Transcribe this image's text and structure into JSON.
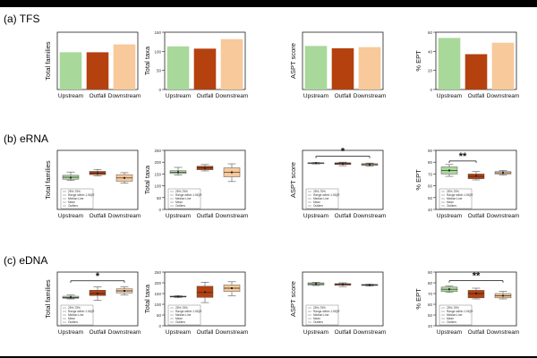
{
  "colors": {
    "upstream": "#a8d99a",
    "outfall": "#b5410f",
    "downstream": "#f8c99a",
    "box_edge": "#555555"
  },
  "rows": [
    {
      "label": "(a) TFS"
    },
    {
      "label": "(b) eRNA"
    },
    {
      "label": "(c) eDNA"
    }
  ],
  "legend": {
    "box": "25%-75%",
    "whisker": "Range within 1.5IQR",
    "median": "Median Line",
    "mean": "Mean",
    "outliers": "Outliers"
  },
  "chart_data": [
    {
      "type": "bar",
      "row": 0,
      "col": 0,
      "ylabel": "Total families",
      "categories": [
        "Upstream",
        "Outfall",
        "Downstream"
      ],
      "ylim": [
        0,
        80
      ],
      "yticks": [],
      "values": [
        52,
        52,
        63
      ]
    },
    {
      "type": "bar",
      "row": 0,
      "col": 1,
      "ylabel": "Total taxa",
      "categories": [
        "Upstream",
        "Outfall",
        "Downstream"
      ],
      "ylim": [
        0,
        150
      ],
      "yticks": [
        0,
        50,
        100,
        150
      ],
      "values": [
        113,
        107,
        132
      ]
    },
    {
      "type": "bar",
      "row": 0,
      "col": 2,
      "ylabel": "ASPT score",
      "categories": [
        "Upstream",
        "Outfall",
        "Downstream"
      ],
      "ylim": [
        0,
        10
      ],
      "yticks": [],
      "values": [
        7.6,
        7.2,
        7.4
      ]
    },
    {
      "type": "bar",
      "row": 0,
      "col": 3,
      "ylabel": "% EPT",
      "categories": [
        "Upstream",
        "Outfall",
        "Downstream"
      ],
      "ylim": [
        0,
        60
      ],
      "yticks": [
        0,
        20,
        40,
        60
      ],
      "values": [
        54,
        37,
        49
      ]
    },
    {
      "type": "box",
      "row": 1,
      "col": 0,
      "ylabel": "Total families",
      "categories": [
        "Upstream",
        "Outfall",
        "Downstream"
      ],
      "ylim": [
        0,
        90
      ],
      "yticks": [],
      "boxes": [
        {
          "min": 44,
          "q1": 46,
          "median": 49,
          "q3": 52,
          "max": 57,
          "mean": 48.5
        },
        {
          "min": 51,
          "q1": 53,
          "median": 55,
          "q3": 58,
          "max": 61,
          "mean": 55.2
        },
        {
          "min": 40,
          "q1": 43,
          "median": 48,
          "q3": 53,
          "max": 56,
          "mean": 48
        }
      ],
      "significance": null
    },
    {
      "type": "box",
      "row": 1,
      "col": 1,
      "ylabel": "Total taxa",
      "categories": [
        "Upstream",
        "Outfall",
        "Downstream"
      ],
      "ylim": [
        0,
        250
      ],
      "yticks": [
        0,
        50,
        100,
        150,
        200,
        250
      ],
      "boxes": [
        {
          "min": 145,
          "q1": 152,
          "median": 158,
          "q3": 164,
          "max": 178,
          "mean": 158
        },
        {
          "min": 163,
          "q1": 168,
          "median": 176,
          "q3": 183,
          "max": 190,
          "mean": 175
        },
        {
          "min": 118,
          "q1": 138,
          "median": 157,
          "q3": 176,
          "max": 193,
          "mean": 157
        }
      ],
      "significance": null
    },
    {
      "type": "box",
      "row": 1,
      "col": 2,
      "ylabel": "ASPT score",
      "categories": [
        "Upstream",
        "Outfall",
        "Downstream"
      ],
      "ylim": [
        0,
        10
      ],
      "yticks": [],
      "boxes": [
        {
          "min": 7.7,
          "q1": 7.8,
          "median": 7.85,
          "q3": 7.9,
          "max": 7.95,
          "mean": 7.85
        },
        {
          "min": 7.4,
          "q1": 7.6,
          "median": 7.75,
          "q3": 7.9,
          "max": 8.0,
          "mean": 7.72
        },
        {
          "min": 7.3,
          "q1": 7.45,
          "median": 7.6,
          "q3": 7.75,
          "max": 7.85,
          "mean": 7.6
        }
      ],
      "significance": {
        "from": 0,
        "to": 2,
        "label": "*",
        "y": 9.0
      }
    },
    {
      "type": "box",
      "row": 1,
      "col": 3,
      "ylabel": "% EPT",
      "categories": [
        "Upstream",
        "Outfall",
        "Downstream"
      ],
      "ylim": [
        40,
        90
      ],
      "yticks": [
        40,
        50,
        60,
        70,
        80,
        90
      ],
      "boxes": [
        {
          "min": 68,
          "q1": 70,
          "median": 73,
          "q3": 76,
          "max": 78,
          "mean": 73
        },
        {
          "min": 65,
          "q1": 66,
          "median": 68,
          "q3": 70,
          "max": 72,
          "mean": 68.4
        },
        {
          "min": 69,
          "q1": 70,
          "median": 71,
          "q3": 72,
          "max": 73,
          "mean": 71
        }
      ],
      "significance": {
        "from": 0,
        "to": 1,
        "label": "**",
        "y": 81
      }
    },
    {
      "type": "box",
      "row": 2,
      "col": 0,
      "ylabel": "Total families",
      "categories": [
        "Upstream",
        "Outfall",
        "Downstream"
      ],
      "ylim": [
        0,
        80
      ],
      "yticks": [],
      "boxes": [
        {
          "min": 40,
          "q1": 41,
          "median": 42,
          "q3": 44,
          "max": 46,
          "mean": 42.5
        },
        {
          "min": 38,
          "q1": 45,
          "median": 48,
          "q3": 53,
          "max": 58,
          "mean": 48
        },
        {
          "min": 46,
          "q1": 49,
          "median": 52,
          "q3": 55,
          "max": 58,
          "mean": 52
        }
      ],
      "significance": {
        "from": 0,
        "to": 2,
        "label": "*",
        "y": 67
      }
    },
    {
      "type": "box",
      "row": 2,
      "col": 1,
      "ylabel": "Total taxa",
      "categories": [
        "Upstream",
        "Outfall",
        "Downstream"
      ],
      "ylim": [
        0,
        250
      ],
      "yticks": [
        0,
        50,
        100,
        150,
        200,
        250
      ],
      "boxes": [
        {
          "min": 132,
          "q1": 134,
          "median": 136,
          "q3": 138,
          "max": 140,
          "mean": 136
        },
        {
          "min": 108,
          "q1": 132,
          "median": 155,
          "q3": 184,
          "max": 203,
          "mean": 157
        },
        {
          "min": 140,
          "q1": 160,
          "median": 175,
          "q3": 190,
          "max": 205,
          "mean": 175
        }
      ],
      "significance": null
    },
    {
      "type": "box",
      "row": 2,
      "col": 2,
      "ylabel": "ASPT score",
      "categories": [
        "Upstream",
        "Outfall",
        "Downstream"
      ],
      "ylim": [
        0,
        10
      ],
      "yticks": [],
      "boxes": [
        {
          "min": 7.5,
          "q1": 7.6,
          "median": 7.8,
          "q3": 8.0,
          "max": 8.1,
          "mean": 7.8
        },
        {
          "min": 7.3,
          "q1": 7.55,
          "median": 7.7,
          "q3": 7.85,
          "max": 8.0,
          "mean": 7.7
        },
        {
          "min": 7.4,
          "q1": 7.5,
          "median": 7.6,
          "q3": 7.7,
          "max": 7.75,
          "mean": 7.6
        }
      ],
      "significance": null
    },
    {
      "type": "box",
      "row": 2,
      "col": 3,
      "ylabel": "% EPT",
      "categories": [
        "Upstream",
        "Outfall",
        "Downstream"
      ],
      "ylim": [
        40,
        90
      ],
      "yticks": [
        40,
        50,
        60,
        70,
        80,
        90
      ],
      "boxes": [
        {
          "min": 71,
          "q1": 72,
          "median": 74,
          "q3": 76,
          "max": 77,
          "mean": 74
        },
        {
          "min": 65,
          "q1": 66,
          "median": 70,
          "q3": 73,
          "max": 75,
          "mean": 70
        },
        {
          "min": 65,
          "q1": 66,
          "median": 68,
          "q3": 70,
          "max": 72,
          "mean": 68
        }
      ],
      "significance": {
        "from": 0,
        "to": 2,
        "label": "**",
        "y": 82
      }
    }
  ]
}
